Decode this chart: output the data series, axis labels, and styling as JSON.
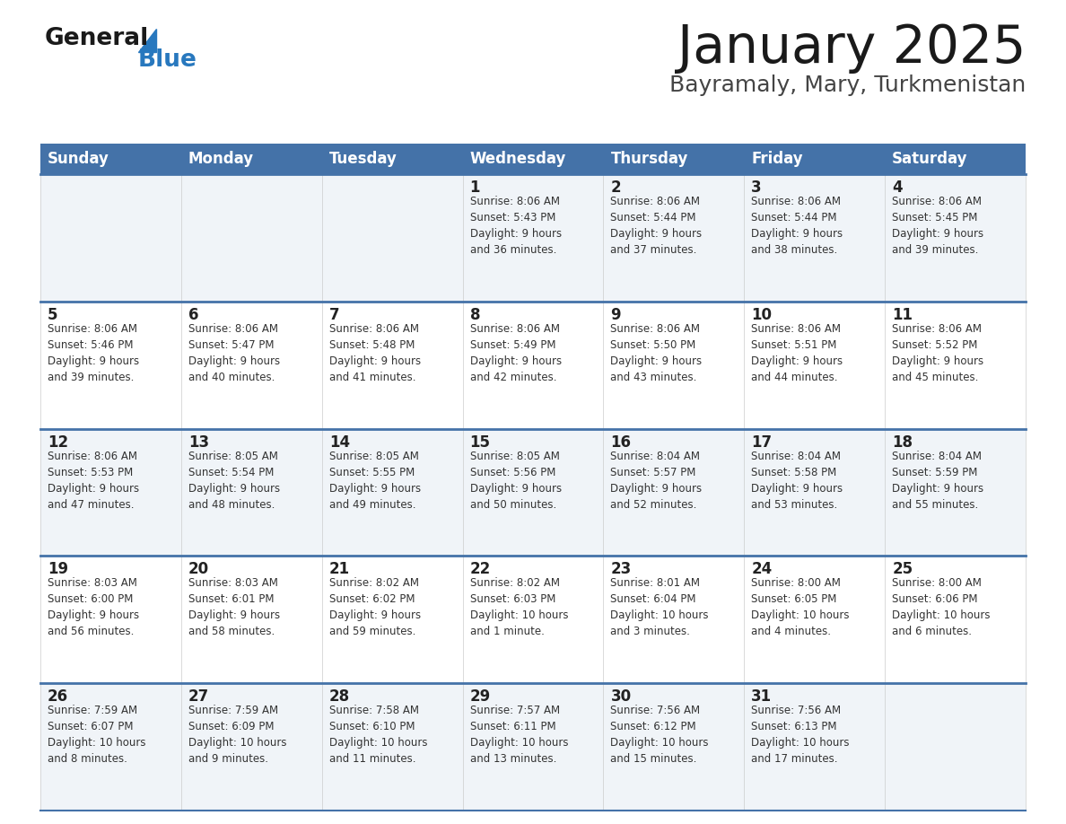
{
  "title": "January 2025",
  "subtitle": "Bayramaly, Mary, Turkmenistan",
  "days_of_week": [
    "Sunday",
    "Monday",
    "Tuesday",
    "Wednesday",
    "Thursday",
    "Friday",
    "Saturday"
  ],
  "header_bg": "#4472a8",
  "header_text": "#ffffff",
  "cell_bg_even": "#f0f4f8",
  "cell_bg_odd": "#ffffff",
  "cell_text": "#333333",
  "day_num_color": "#222222",
  "border_color": "#4472a8",
  "title_color": "#1a1a1a",
  "subtitle_color": "#444444",
  "logo_general_color": "#1a1a1a",
  "logo_blue_color": "#2878be",
  "weeks": [
    [
      {
        "day": null,
        "info": null
      },
      {
        "day": null,
        "info": null
      },
      {
        "day": null,
        "info": null
      },
      {
        "day": 1,
        "info": "Sunrise: 8:06 AM\nSunset: 5:43 PM\nDaylight: 9 hours\nand 36 minutes."
      },
      {
        "day": 2,
        "info": "Sunrise: 8:06 AM\nSunset: 5:44 PM\nDaylight: 9 hours\nand 37 minutes."
      },
      {
        "day": 3,
        "info": "Sunrise: 8:06 AM\nSunset: 5:44 PM\nDaylight: 9 hours\nand 38 minutes."
      },
      {
        "day": 4,
        "info": "Sunrise: 8:06 AM\nSunset: 5:45 PM\nDaylight: 9 hours\nand 39 minutes."
      }
    ],
    [
      {
        "day": 5,
        "info": "Sunrise: 8:06 AM\nSunset: 5:46 PM\nDaylight: 9 hours\nand 39 minutes."
      },
      {
        "day": 6,
        "info": "Sunrise: 8:06 AM\nSunset: 5:47 PM\nDaylight: 9 hours\nand 40 minutes."
      },
      {
        "day": 7,
        "info": "Sunrise: 8:06 AM\nSunset: 5:48 PM\nDaylight: 9 hours\nand 41 minutes."
      },
      {
        "day": 8,
        "info": "Sunrise: 8:06 AM\nSunset: 5:49 PM\nDaylight: 9 hours\nand 42 minutes."
      },
      {
        "day": 9,
        "info": "Sunrise: 8:06 AM\nSunset: 5:50 PM\nDaylight: 9 hours\nand 43 minutes."
      },
      {
        "day": 10,
        "info": "Sunrise: 8:06 AM\nSunset: 5:51 PM\nDaylight: 9 hours\nand 44 minutes."
      },
      {
        "day": 11,
        "info": "Sunrise: 8:06 AM\nSunset: 5:52 PM\nDaylight: 9 hours\nand 45 minutes."
      }
    ],
    [
      {
        "day": 12,
        "info": "Sunrise: 8:06 AM\nSunset: 5:53 PM\nDaylight: 9 hours\nand 47 minutes."
      },
      {
        "day": 13,
        "info": "Sunrise: 8:05 AM\nSunset: 5:54 PM\nDaylight: 9 hours\nand 48 minutes."
      },
      {
        "day": 14,
        "info": "Sunrise: 8:05 AM\nSunset: 5:55 PM\nDaylight: 9 hours\nand 49 minutes."
      },
      {
        "day": 15,
        "info": "Sunrise: 8:05 AM\nSunset: 5:56 PM\nDaylight: 9 hours\nand 50 minutes."
      },
      {
        "day": 16,
        "info": "Sunrise: 8:04 AM\nSunset: 5:57 PM\nDaylight: 9 hours\nand 52 minutes."
      },
      {
        "day": 17,
        "info": "Sunrise: 8:04 AM\nSunset: 5:58 PM\nDaylight: 9 hours\nand 53 minutes."
      },
      {
        "day": 18,
        "info": "Sunrise: 8:04 AM\nSunset: 5:59 PM\nDaylight: 9 hours\nand 55 minutes."
      }
    ],
    [
      {
        "day": 19,
        "info": "Sunrise: 8:03 AM\nSunset: 6:00 PM\nDaylight: 9 hours\nand 56 minutes."
      },
      {
        "day": 20,
        "info": "Sunrise: 8:03 AM\nSunset: 6:01 PM\nDaylight: 9 hours\nand 58 minutes."
      },
      {
        "day": 21,
        "info": "Sunrise: 8:02 AM\nSunset: 6:02 PM\nDaylight: 9 hours\nand 59 minutes."
      },
      {
        "day": 22,
        "info": "Sunrise: 8:02 AM\nSunset: 6:03 PM\nDaylight: 10 hours\nand 1 minute."
      },
      {
        "day": 23,
        "info": "Sunrise: 8:01 AM\nSunset: 6:04 PM\nDaylight: 10 hours\nand 3 minutes."
      },
      {
        "day": 24,
        "info": "Sunrise: 8:00 AM\nSunset: 6:05 PM\nDaylight: 10 hours\nand 4 minutes."
      },
      {
        "day": 25,
        "info": "Sunrise: 8:00 AM\nSunset: 6:06 PM\nDaylight: 10 hours\nand 6 minutes."
      }
    ],
    [
      {
        "day": 26,
        "info": "Sunrise: 7:59 AM\nSunset: 6:07 PM\nDaylight: 10 hours\nand 8 minutes."
      },
      {
        "day": 27,
        "info": "Sunrise: 7:59 AM\nSunset: 6:09 PM\nDaylight: 10 hours\nand 9 minutes."
      },
      {
        "day": 28,
        "info": "Sunrise: 7:58 AM\nSunset: 6:10 PM\nDaylight: 10 hours\nand 11 minutes."
      },
      {
        "day": 29,
        "info": "Sunrise: 7:57 AM\nSunset: 6:11 PM\nDaylight: 10 hours\nand 13 minutes."
      },
      {
        "day": 30,
        "info": "Sunrise: 7:56 AM\nSunset: 6:12 PM\nDaylight: 10 hours\nand 15 minutes."
      },
      {
        "day": 31,
        "info": "Sunrise: 7:56 AM\nSunset: 6:13 PM\nDaylight: 10 hours\nand 17 minutes."
      },
      {
        "day": null,
        "info": null
      }
    ]
  ]
}
